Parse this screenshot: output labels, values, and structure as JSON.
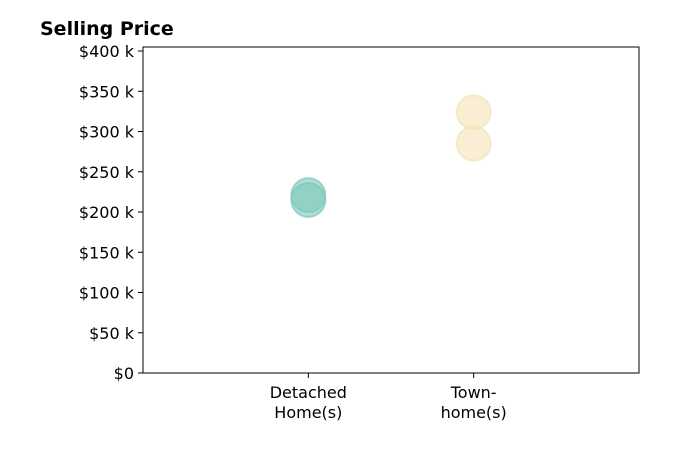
{
  "chart_data": {
    "type": "scatter",
    "title": "Selling Price",
    "xlabel": "",
    "ylabel": "",
    "categories": [
      {
        "id": "detached",
        "lines": [
          "Detached",
          "Home(s)"
        ]
      },
      {
        "id": "townhome",
        "lines": [
          "Town-",
          "home(s)"
        ]
      }
    ],
    "xlim": [
      -1,
      2
    ],
    "ylim": [
      0,
      405000
    ],
    "yticks": [
      {
        "value": 0,
        "label": "$0"
      },
      {
        "value": 50000,
        "label": "$50 k"
      },
      {
        "value": 100000,
        "label": "$100 k"
      },
      {
        "value": 150000,
        "label": "$150 k"
      },
      {
        "value": 200000,
        "label": "$200 k"
      },
      {
        "value": 250000,
        "label": "$250 k"
      },
      {
        "value": 300000,
        "label": "$300 k"
      },
      {
        "value": 350000,
        "label": "$350 k"
      },
      {
        "value": 400000,
        "label": "$400 k"
      }
    ],
    "grid": false,
    "series": [
      {
        "category": "detached",
        "color": "#7ec8bd",
        "values": [
          221000,
          215000
        ]
      },
      {
        "category": "townhome",
        "color": "#f5e3b6",
        "values": [
          324000,
          285000
        ]
      }
    ]
  }
}
